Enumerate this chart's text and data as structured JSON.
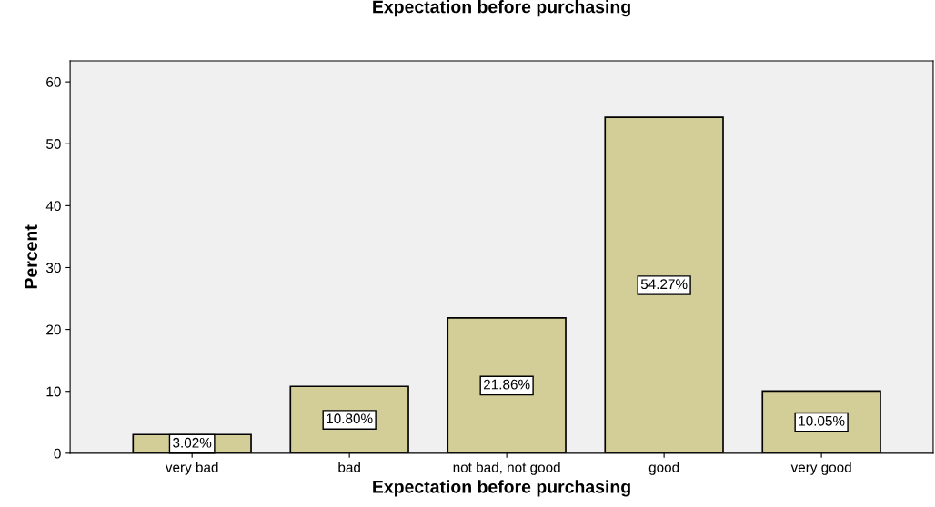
{
  "chart_data": {
    "type": "bar",
    "title": "Expectation before purchasing",
    "xlabel": "Expectation before purchasing",
    "ylabel": "Percent",
    "categories": [
      "very bad",
      "bad",
      "not bad, not good",
      "good",
      "very good"
    ],
    "values": [
      3.02,
      10.8,
      21.86,
      54.27,
      10.05
    ],
    "value_labels": [
      "3.02%",
      "10.80%",
      "21.86%",
      "54.27%",
      "10.05%"
    ],
    "color": "#d3ce97",
    "ylim": [
      0,
      63.4
    ],
    "yticks": [
      0,
      10,
      20,
      30,
      40,
      50,
      60
    ],
    "grid": false
  }
}
